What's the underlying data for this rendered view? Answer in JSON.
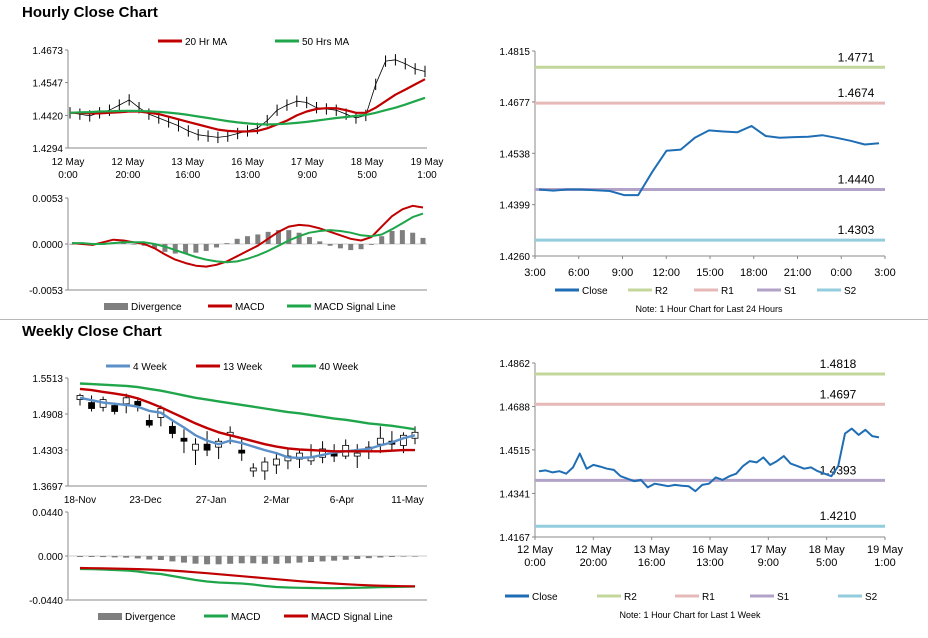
{
  "hourly_title": "Hourly Close Chart",
  "weekly_title": "Weekly Close Chart",
  "colors": {
    "ma_short": "#c00000",
    "ma_long": "#1fa64a",
    "ma_4wk": "#5b8fc8",
    "close": "#1f6eb5",
    "r2": "#c4d79b",
    "r1": "#e6b9b8",
    "s1": "#b3a2c7",
    "s2": "#93cddd",
    "divergence": "#7f7f7f",
    "candle": "#000000"
  },
  "chart_data": [
    {
      "id": "hourly_price",
      "type": "line",
      "legend": [
        "20 Hr MA",
        "50 Hrs MA"
      ],
      "yticks": [
        "1.4673",
        "1.4547",
        "1.4420",
        "1.4294"
      ],
      "ylim": [
        1.4294,
        1.4673
      ],
      "xticks": [
        [
          "12 May",
          "0:00"
        ],
        [
          "12 May",
          "20:00"
        ],
        [
          "13 May",
          "16:00"
        ],
        [
          "16 May",
          "13:00"
        ],
        [
          "17 May",
          "9:00"
        ],
        [
          "18 May",
          "5:00"
        ],
        [
          "19 May",
          "1:00"
        ]
      ],
      "close": [
        1.443,
        1.4425,
        1.4418,
        1.443,
        1.444,
        1.446,
        1.448,
        1.445,
        1.4425,
        1.441,
        1.4395,
        1.438,
        1.436,
        1.4345,
        1.434,
        1.4335,
        1.434,
        1.435,
        1.436,
        1.437,
        1.44,
        1.444,
        1.446,
        1.4475,
        1.447,
        1.445,
        1.4445,
        1.444,
        1.4425,
        1.441,
        1.442,
        1.454,
        1.463,
        1.4635,
        1.462,
        1.46,
        1.459
      ],
      "series": [
        {
          "name": "20 Hr MA",
          "values": [
            1.443,
            1.443,
            1.4428,
            1.4428,
            1.443,
            1.4432,
            1.4435,
            1.4435,
            1.443,
            1.4425,
            1.4415,
            1.4405,
            1.4395,
            1.4385,
            1.4375,
            1.4365,
            1.436,
            1.4358,
            1.4358,
            1.436,
            1.437,
            1.4385,
            1.44,
            1.442,
            1.4435,
            1.4445,
            1.4448,
            1.4448,
            1.444,
            1.443,
            1.443,
            1.445,
            1.4475,
            1.45,
            1.452,
            1.454,
            1.456
          ]
        },
        {
          "name": "50 Hrs MA",
          "values": [
            1.443,
            1.4432,
            1.4433,
            1.4435,
            1.4436,
            1.4437,
            1.4438,
            1.4437,
            1.4436,
            1.4434,
            1.4431,
            1.4427,
            1.4422,
            1.4416,
            1.441,
            1.4404,
            1.4398,
            1.4393,
            1.4389,
            1.4386,
            1.4385,
            1.4386,
            1.4388,
            1.4391,
            1.4395,
            1.44,
            1.4405,
            1.441,
            1.4414,
            1.4418,
            1.4422,
            1.443,
            1.444,
            1.445,
            1.4462,
            1.4475,
            1.4488
          ]
        }
      ]
    },
    {
      "id": "hourly_macd",
      "type": "bar",
      "legend": [
        "Divergence",
        "MACD",
        "MACD Signal Line"
      ],
      "yticks": [
        "0.0053",
        "0.0000",
        "-0.0053"
      ],
      "ylim": [
        -0.0053,
        0.0053
      ],
      "series": [
        {
          "name": "MACD",
          "values": [
            0.0001,
            0.0,
            -0.0001,
            0.0002,
            0.0005,
            0.0004,
            0.0002,
            0.0,
            -0.0005,
            -0.0012,
            -0.0018,
            -0.0022,
            -0.0025,
            -0.0026,
            -0.0024,
            -0.002,
            -0.0014,
            -0.0008,
            -0.0002,
            0.0006,
            0.0014,
            0.002,
            0.0022,
            0.0021,
            0.0018,
            0.0014,
            0.001,
            0.0006,
            0.0004,
            0.0008,
            0.002,
            0.0032,
            0.004,
            0.0044,
            0.0042
          ]
        },
        {
          "name": "MACD Signal Line",
          "values": [
            0.0001,
            0.0001,
            0.0,
            0.0,
            0.0001,
            0.0002,
            0.0002,
            0.0002,
            0.0,
            -0.0003,
            -0.0007,
            -0.0011,
            -0.0015,
            -0.0018,
            -0.002,
            -0.0021,
            -0.002,
            -0.0017,
            -0.0013,
            -0.0008,
            -0.0002,
            0.0004,
            0.0009,
            0.0013,
            0.0015,
            0.0016,
            0.0015,
            0.0013,
            0.001,
            0.0009,
            0.0011,
            0.0017,
            0.0024,
            0.0031,
            0.0035
          ]
        },
        {
          "name": "Divergence",
          "values": [
            0.0,
            0.0,
            -0.0001,
            0.0,
            0.0002,
            0.0002,
            0.0,
            -0.0002,
            -0.0005,
            -0.0009,
            -0.0011,
            -0.0011,
            -0.001,
            -0.0008,
            -0.0004,
            0.0001,
            0.0006,
            0.0009,
            0.0011,
            0.0014,
            0.0016,
            0.0016,
            0.0013,
            0.0008,
            0.0003,
            -0.0002,
            -0.0005,
            -0.0007,
            -0.0006,
            -0.0001,
            0.0009,
            0.0015,
            0.0016,
            0.0013,
            0.0007
          ]
        }
      ]
    },
    {
      "id": "hourly_close",
      "type": "line",
      "legend": [
        "Close",
        "R2",
        "R1",
        "S1",
        "S2"
      ],
      "yticks": [
        "1.4815",
        "1.4677",
        "1.4538",
        "1.4399",
        "1.4260"
      ],
      "ylim": [
        1.426,
        1.4815
      ],
      "xticks": [
        "3:00",
        "6:00",
        "9:00",
        "12:00",
        "15:00",
        "18:00",
        "21:00",
        "0:00",
        "3:00"
      ],
      "levels": [
        {
          "name": "R2",
          "value": 1.4771,
          "label": "1.4771"
        },
        {
          "name": "R1",
          "value": 1.4674,
          "label": "1.4674"
        },
        {
          "name": "S1",
          "value": 1.444,
          "label": "1.4440"
        },
        {
          "name": "S2",
          "value": 1.4303,
          "label": "1.4303"
        }
      ],
      "note": "Note: 1 Hour Chart for Last 24 Hours",
      "x": [
        0,
        1,
        2,
        3,
        4,
        5,
        6,
        7,
        8,
        9,
        10,
        11,
        12,
        13,
        14,
        15,
        16,
        17,
        18,
        19,
        20,
        21,
        22,
        23,
        24
      ],
      "values": [
        1.444,
        1.4437,
        1.444,
        1.444,
        1.4438,
        1.4436,
        1.4425,
        1.4425,
        1.4488,
        1.4545,
        1.4548,
        1.458,
        1.46,
        1.4597,
        1.4595,
        1.4612,
        1.4585,
        1.458,
        1.4582,
        1.4583,
        1.4587,
        1.458,
        1.4572,
        1.4562,
        1.4565
      ]
    },
    {
      "id": "weekly_price",
      "type": "line",
      "legend": [
        "4 Week",
        "13 Week",
        "40 Week"
      ],
      "yticks": [
        "1.5513",
        "1.4908",
        "1.4303",
        "1.3697"
      ],
      "ylim": [
        1.3697,
        1.5513
      ],
      "xticks": [
        "18-Nov",
        "23-Dec",
        "27-Jan",
        "2-Mar",
        "6-Apr",
        "11-May"
      ],
      "candles": [
        [
          1.515,
          1.525,
          1.505,
          1.522
        ],
        [
          1.51,
          1.522,
          1.495,
          1.5
        ],
        [
          1.502,
          1.52,
          1.495,
          1.515
        ],
        [
          1.505,
          1.51,
          1.49,
          1.495
        ],
        [
          1.508,
          1.525,
          1.492,
          1.518
        ],
        [
          1.512,
          1.518,
          1.495,
          1.505
        ],
        [
          1.48,
          1.49,
          1.468,
          1.472
        ],
        [
          1.485,
          1.505,
          1.47,
          1.5
        ],
        [
          1.47,
          1.478,
          1.45,
          1.458
        ],
        [
          1.45,
          1.465,
          1.425,
          1.445
        ],
        [
          1.43,
          1.45,
          1.405,
          1.44
        ],
        [
          1.44,
          1.462,
          1.42,
          1.43
        ],
        [
          1.435,
          1.45,
          1.415,
          1.445
        ],
        [
          1.455,
          1.47,
          1.44,
          1.46
        ],
        [
          1.43,
          1.448,
          1.412,
          1.425
        ],
        [
          1.395,
          1.408,
          1.385,
          1.4
        ],
        [
          1.395,
          1.418,
          1.38,
          1.41
        ],
        [
          1.405,
          1.425,
          1.39,
          1.415
        ],
        [
          1.412,
          1.432,
          1.398,
          1.42
        ],
        [
          1.415,
          1.43,
          1.4,
          1.425
        ],
        [
          1.412,
          1.44,
          1.405,
          1.418
        ],
        [
          1.418,
          1.445,
          1.408,
          1.432
        ],
        [
          1.425,
          1.44,
          1.41,
          1.42
        ],
        [
          1.42,
          1.448,
          1.415,
          1.438
        ],
        [
          1.42,
          1.44,
          1.4,
          1.425
        ],
        [
          1.428,
          1.445,
          1.415,
          1.435
        ],
        [
          1.44,
          1.47,
          1.425,
          1.45
        ],
        [
          1.445,
          1.462,
          1.43,
          1.44
        ],
        [
          1.438,
          1.46,
          1.425,
          1.455
        ],
        [
          1.45,
          1.47,
          1.44,
          1.46
        ]
      ],
      "series": [
        {
          "name": "4 Week",
          "values": [
            1.518,
            1.514,
            1.51,
            1.508,
            1.506,
            1.503,
            1.496,
            1.493,
            1.48,
            1.468,
            1.455,
            1.446,
            1.44,
            1.446,
            1.442,
            1.436,
            1.43,
            1.425,
            1.418,
            1.417,
            1.418,
            1.422,
            1.426,
            1.428,
            1.43,
            1.432,
            1.438,
            1.443,
            1.45,
            1.455
          ]
        },
        {
          "name": "13 Week",
          "values": [
            1.533,
            1.531,
            1.528,
            1.525,
            1.522,
            1.517,
            1.51,
            1.502,
            1.493,
            1.484,
            1.475,
            1.467,
            1.46,
            1.455,
            1.45,
            1.445,
            1.44,
            1.436,
            1.433,
            1.431,
            1.43,
            1.429,
            1.428,
            1.428,
            1.428,
            1.428,
            1.428,
            1.429,
            1.43,
            1.43
          ]
        },
        {
          "name": "40 Week",
          "values": [
            1.542,
            1.541,
            1.54,
            1.539,
            1.538,
            1.536,
            1.533,
            1.53,
            1.526,
            1.522,
            1.518,
            1.515,
            1.512,
            1.509,
            1.506,
            1.503,
            1.5,
            1.497,
            1.494,
            1.492,
            1.489,
            1.486,
            1.483,
            1.481,
            1.478,
            1.475,
            1.473,
            1.471,
            1.468,
            1.465
          ]
        }
      ]
    },
    {
      "id": "weekly_macd",
      "type": "bar",
      "legend": [
        "Divergence",
        "MACD",
        "MACD Signal Line"
      ],
      "yticks": [
        "0.0440",
        "0.000",
        "-0.0440"
      ],
      "ylim": [
        -0.044,
        0.044
      ],
      "series": [
        {
          "name": "MACD",
          "values": [
            -0.013,
            -0.0132,
            -0.0135,
            -0.014,
            -0.0145,
            -0.0155,
            -0.017,
            -0.018,
            -0.02,
            -0.022,
            -0.024,
            -0.0255,
            -0.0265,
            -0.027,
            -0.0275,
            -0.0285,
            -0.03,
            -0.031,
            -0.0315,
            -0.0318,
            -0.032,
            -0.0322,
            -0.0322,
            -0.032,
            -0.0318,
            -0.0315,
            -0.0312,
            -0.031,
            -0.0308,
            -0.0305
          ]
        },
        {
          "name": "MACD Signal Line",
          "values": [
            -0.012,
            -0.0122,
            -0.0124,
            -0.0126,
            -0.0128,
            -0.0131,
            -0.0135,
            -0.014,
            -0.0146,
            -0.0154,
            -0.0163,
            -0.0172,
            -0.0182,
            -0.0192,
            -0.0202,
            -0.0212,
            -0.0222,
            -0.0232,
            -0.0242,
            -0.0252,
            -0.026,
            -0.0268,
            -0.0275,
            -0.0282,
            -0.0288,
            -0.0293,
            -0.0297,
            -0.03,
            -0.0302,
            -0.0303
          ]
        },
        {
          "name": "Divergence",
          "values": [
            -0.001,
            -0.001,
            -0.0011,
            -0.0014,
            -0.0017,
            -0.0024,
            -0.0035,
            -0.004,
            -0.0054,
            -0.0066,
            -0.0077,
            -0.0083,
            -0.0083,
            -0.0078,
            -0.0073,
            -0.0073,
            -0.0078,
            -0.0078,
            -0.0073,
            -0.0066,
            -0.006,
            -0.0054,
            -0.0047,
            -0.0038,
            -0.003,
            -0.0022,
            -0.0015,
            -0.001,
            -0.0006,
            -0.0002
          ]
        }
      ]
    },
    {
      "id": "weekly_close",
      "type": "line",
      "legend": [
        "Close",
        "R2",
        "R1",
        "S1",
        "S2"
      ],
      "yticks": [
        "1.4862",
        "1.4688",
        "1.4515",
        "1.4341",
        "1.4167"
      ],
      "ylim": [
        1.4167,
        1.4862
      ],
      "xticks": [
        [
          "12 May",
          "0:00"
        ],
        [
          "12 May",
          "20:00"
        ],
        [
          "13 May",
          "16:00"
        ],
        [
          "16 May",
          "13:00"
        ],
        [
          "17 May",
          "9:00"
        ],
        [
          "18 May",
          "5:00"
        ],
        [
          "19 May",
          "1:00"
        ]
      ],
      "levels": [
        {
          "name": "R2",
          "value": 1.4818,
          "label": "1.4818"
        },
        {
          "name": "R1",
          "value": 1.4697,
          "label": "1.4697"
        },
        {
          "name": "S1",
          "value": 1.4393,
          "label": "1.4393"
        },
        {
          "name": "S2",
          "value": 1.421,
          "label": "1.4210"
        }
      ],
      "note": "Note: 1 Hour Chart for Last 1 Week",
      "values": [
        1.443,
        1.4433,
        1.4425,
        1.443,
        1.442,
        1.4445,
        1.45,
        1.444,
        1.4455,
        1.4448,
        1.444,
        1.4435,
        1.441,
        1.44,
        1.439,
        1.4395,
        1.4365,
        1.438,
        1.4375,
        1.437,
        1.4375,
        1.4372,
        1.437,
        1.435,
        1.4375,
        1.438,
        1.4405,
        1.4395,
        1.441,
        1.442,
        1.445,
        1.447,
        1.4465,
        1.4485,
        1.4455,
        1.447,
        1.449,
        1.446,
        1.445,
        1.444,
        1.4445,
        1.443,
        1.442,
        1.441,
        1.445,
        1.458,
        1.46,
        1.4575,
        1.4595,
        1.457,
        1.4565
      ]
    }
  ]
}
